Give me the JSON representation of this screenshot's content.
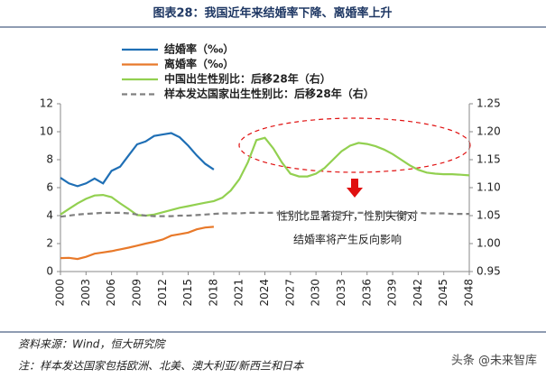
{
  "chart_data": {
    "type": "line",
    "title": "图表28：我国近年来结婚率下降、离婚率上升",
    "x": [
      2000,
      2001,
      2002,
      2003,
      2004,
      2005,
      2006,
      2007,
      2008,
      2009,
      2010,
      2011,
      2012,
      2013,
      2014,
      2015,
      2016,
      2017,
      2018,
      2019,
      2020,
      2021,
      2022,
      2023,
      2024,
      2025,
      2026,
      2027,
      2028,
      2029,
      2030,
      2031,
      2032,
      2033,
      2034,
      2035,
      2036,
      2037,
      2038,
      2039,
      2040,
      2041,
      2042,
      2043,
      2044,
      2045,
      2046,
      2047,
      2048
    ],
    "xlim": [
      2000,
      2048
    ],
    "xticks": [
      2000,
      2003,
      2006,
      2009,
      2012,
      2015,
      2018,
      2021,
      2024,
      2027,
      2030,
      2033,
      2036,
      2039,
      2042,
      2045,
      2048
    ],
    "ylim": [
      0,
      12
    ],
    "yticks": [
      0,
      2,
      4,
      6,
      8,
      10,
      12
    ],
    "y2lim": [
      0.95,
      1.25
    ],
    "y2ticks": [
      {
        "value": 0.95,
        "label": "0.95"
      },
      {
        "value": 1.0,
        "label": "1.00"
      },
      {
        "value": 1.05,
        "label": "1.05"
      },
      {
        "value": 1.1,
        "label": "1.10"
      },
      {
        "value": 1.15,
        "label": "1.15"
      },
      {
        "value": 1.2,
        "label": "1.20"
      },
      {
        "value": 1.25,
        "label": "1.25"
      }
    ],
    "series": [
      {
        "name": "结婚率（‰）",
        "color": "#1f6fb5",
        "values": [
          6.7,
          6.3,
          6.1,
          6.3,
          6.65,
          6.3,
          7.2,
          7.5,
          8.3,
          9.1,
          9.3,
          9.7,
          9.8,
          9.9,
          9.6,
          9.0,
          8.3,
          7.7,
          7.3,
          null,
          null,
          null,
          null,
          null,
          null,
          null,
          null,
          null,
          null,
          null,
          null,
          null,
          null,
          null,
          null,
          null,
          null,
          null,
          null,
          null,
          null,
          null,
          null,
          null,
          null,
          null,
          null,
          null,
          null
        ]
      },
      {
        "name": "离婚率（‰）",
        "color": "#e8792a",
        "values": [
          0.96,
          0.98,
          0.9,
          1.05,
          1.28,
          1.37,
          1.46,
          1.59,
          1.71,
          1.85,
          2.0,
          2.13,
          2.29,
          2.57,
          2.67,
          2.79,
          3.02,
          3.15,
          3.2,
          null,
          null,
          null,
          null,
          null,
          null,
          null,
          null,
          null,
          null,
          null,
          null,
          null,
          null,
          null,
          null,
          null,
          null,
          null,
          null,
          null,
          null,
          null,
          null,
          null,
          null,
          null,
          null,
          null,
          null
        ]
      },
      {
        "name": "中国出生性别比：后移28年（右）",
        "color": "#92d050",
        "axis": "y2",
        "values": [
          1.052,
          1.062,
          1.072,
          1.08,
          1.086,
          1.087,
          1.083,
          1.072,
          1.062,
          1.051,
          1.05,
          1.052,
          1.056,
          1.06,
          1.064,
          1.067,
          1.07,
          1.073,
          1.076,
          1.082,
          1.095,
          1.115,
          1.145,
          1.185,
          1.189,
          1.17,
          1.145,
          1.125,
          1.12,
          1.12,
          1.125,
          1.135,
          1.15,
          1.165,
          1.175,
          1.18,
          1.178,
          1.174,
          1.168,
          1.16,
          1.15,
          1.14,
          1.132,
          1.127,
          1.125,
          1.124,
          1.124,
          1.123,
          1.122
        ]
      },
      {
        "name": "样本发达国家出生性别比：后移28年（右）",
        "color": "#808080",
        "axis": "y2",
        "dashed": true,
        "values": [
          1.048,
          1.05,
          1.052,
          1.053,
          1.054,
          1.055,
          1.055,
          1.055,
          1.054,
          1.052,
          1.05,
          1.049,
          1.049,
          1.049,
          1.05,
          1.05,
          1.051,
          1.052,
          1.053,
          1.054,
          1.054,
          1.054,
          1.055,
          1.055,
          1.055,
          1.055,
          1.055,
          1.055,
          1.055,
          1.055,
          1.055,
          1.055,
          1.055,
          1.055,
          1.055,
          1.055,
          1.055,
          1.055,
          1.055,
          1.055,
          1.055,
          1.055,
          1.055,
          1.054,
          1.054,
          1.054,
          1.053,
          1.053,
          1.053
        ]
      }
    ],
    "annotations": [
      "性别比显著提升，性别失衡对",
      "结婚率将产生反向影响"
    ],
    "source": "资料来源：Wind，恒大研究院",
    "footnote": "注：样本发达国家包括欧洲、北美、澳大利亚/新西兰和日本",
    "watermark": "头条 @未来智库"
  }
}
